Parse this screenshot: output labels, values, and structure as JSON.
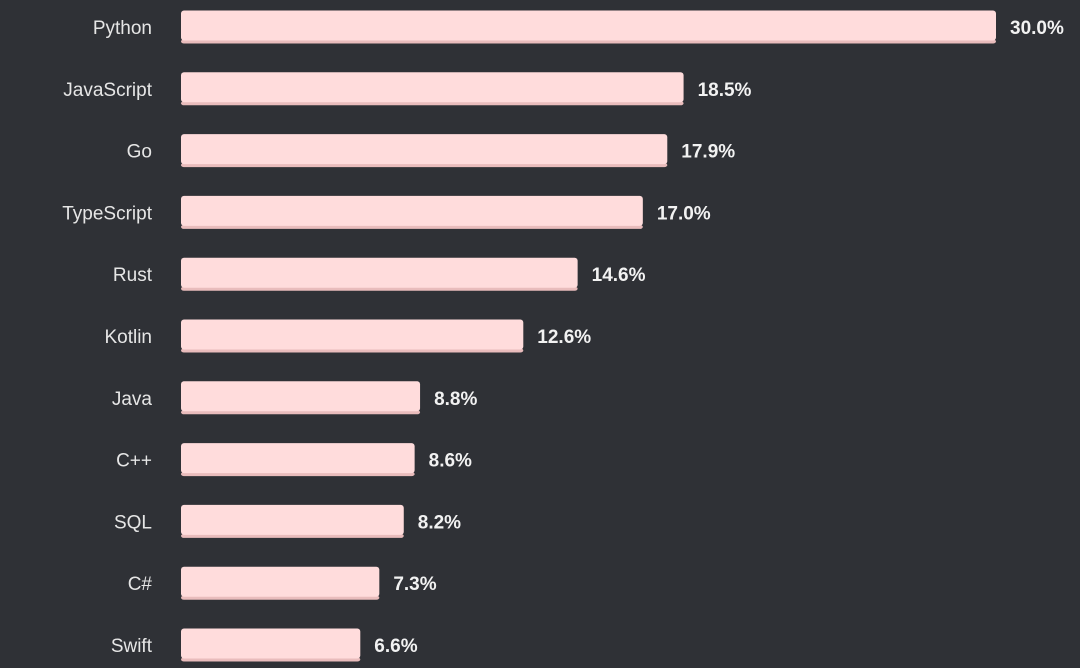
{
  "chart_data": {
    "type": "bar",
    "orientation": "horizontal",
    "categories": [
      "Python",
      "JavaScript",
      "Go",
      "TypeScript",
      "Rust",
      "Kotlin",
      "Java",
      "C++",
      "SQL",
      "C#",
      "Swift"
    ],
    "values": [
      30.0,
      18.5,
      17.9,
      17.0,
      14.6,
      12.6,
      8.8,
      8.6,
      8.2,
      7.3,
      6.6
    ],
    "value_labels": [
      "30.0%",
      "18.5%",
      "17.9%",
      "17.0%",
      "14.6%",
      "12.6%",
      "8.8%",
      "8.6%",
      "8.2%",
      "7.3%",
      "6.6%"
    ],
    "unit": "%",
    "xlim": [
      0,
      30
    ],
    "grid": false,
    "legend": "none",
    "colors": {
      "background": "#2f3136",
      "bar": "#ffdcdc",
      "bar_shadow": "#e9bcbc",
      "label": "#e6e6e6",
      "value": "#f2f2f2"
    }
  }
}
